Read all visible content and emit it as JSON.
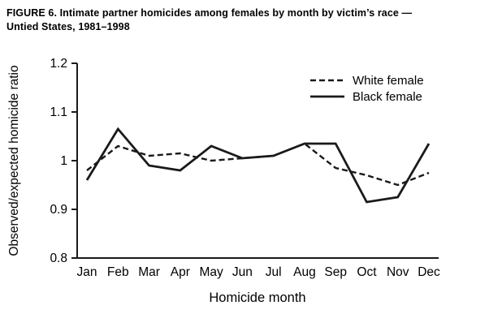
{
  "caption": {
    "line1": "FIGURE 6. Intimate partner homicides among females by month by victim’s race —",
    "line2": "Untied States, 1981–1998"
  },
  "chart_data": {
    "type": "line",
    "title": "FIGURE 6. Intimate partner homicides among females by month by victim’s race — Untied States, 1981–1998",
    "xlabel": "Homicide month",
    "ylabel": "Observed/expected homicide ratio",
    "categories": [
      "Jan",
      "Feb",
      "Mar",
      "Apr",
      "May",
      "Jun",
      "Jul",
      "Aug",
      "Sep",
      "Oct",
      "Nov",
      "Dec"
    ],
    "series": [
      {
        "name": "White female",
        "style": "dashed",
        "values": [
          0.98,
          1.03,
          1.01,
          1.015,
          1.0,
          1.005,
          1.01,
          1.035,
          0.985,
          0.97,
          0.95,
          0.975
        ]
      },
      {
        "name": "Black female",
        "style": "solid",
        "values": [
          0.96,
          1.065,
          0.99,
          0.98,
          1.03,
          1.005,
          1.01,
          1.035,
          1.035,
          0.915,
          0.925,
          1.035
        ]
      }
    ],
    "ylim": [
      0.8,
      1.2
    ],
    "yticks": [
      {
        "value": 0.8,
        "label": "0.8"
      },
      {
        "value": 0.9,
        "label": "0.9"
      },
      {
        "value": 1.0,
        "label": "1"
      },
      {
        "value": 1.1,
        "label": "1.1"
      },
      {
        "value": 1.2,
        "label": "1.2"
      }
    ],
    "grid": false,
    "legend_position": "top-right",
    "line_color": "#1a1a1a"
  }
}
